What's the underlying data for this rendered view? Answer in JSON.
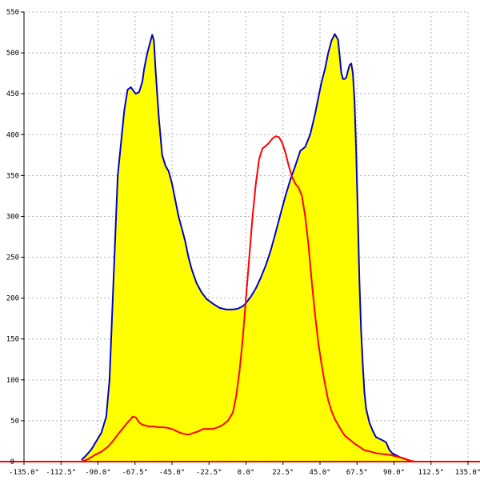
{
  "chart_data": {
    "type": "area",
    "title": "",
    "xlabel": "",
    "ylabel": "",
    "xlim": [
      -135,
      135
    ],
    "ylim": [
      0,
      550
    ],
    "x_tick_labels": [
      "-135.0°",
      "-112.5°",
      "-90.0°",
      "-67.5°",
      "-45.0°",
      "-22.5°",
      "0.0°",
      "22.5°",
      "45.0°",
      "67.5°",
      "90.0°",
      "112.5°",
      "135.0°"
    ],
    "y_tick_labels": [
      "50",
      "100",
      "150",
      "200",
      "250",
      "300",
      "350",
      "400",
      "450",
      "500",
      "550"
    ],
    "grid": true,
    "legend": "none",
    "colors": {
      "fill": "#ffff00",
      "blue_line": "#0000cc",
      "red_line": "#ff0000",
      "baseline": "#ff0000",
      "grid": "#b0b0b0"
    },
    "series": [
      {
        "color": "blue",
        "filled": true,
        "x": [
          -100,
          -97,
          -94,
          -91,
          -88,
          -85,
          -83,
          -81,
          -79,
          -78,
          -76,
          -74,
          -72,
          -70,
          -69,
          -67,
          -65,
          -63,
          -62,
          -60,
          -58,
          -57,
          -56,
          -55,
          -53,
          -51,
          -49,
          -47,
          -45,
          -43,
          -41,
          -39,
          -37,
          -35,
          -33,
          -30,
          -27,
          -24,
          -20,
          -16,
          -12,
          -8,
          -5,
          -2,
          0,
          3,
          6,
          9,
          12,
          15,
          18,
          21,
          24,
          27,
          30,
          33,
          36,
          39,
          42,
          44,
          46,
          48,
          50,
          52,
          54,
          56,
          57,
          58,
          59,
          60,
          61,
          62,
          63,
          64,
          65,
          66,
          67,
          68,
          69,
          70,
          71,
          72,
          73,
          75,
          77,
          79,
          81,
          83,
          85,
          86,
          87,
          89,
          91,
          94,
          97,
          100,
          102,
          103
        ],
        "y": [
          2,
          8,
          15,
          25,
          35,
          55,
          100,
          200,
          300,
          350,
          390,
          430,
          455,
          458,
          455,
          450,
          452,
          465,
          480,
          500,
          515,
          522,
          515,
          480,
          420,
          375,
          362,
          355,
          340,
          320,
          300,
          285,
          270,
          250,
          235,
          218,
          207,
          199,
          193,
          188,
          186,
          186,
          187,
          190,
          194,
          202,
          212,
          225,
          240,
          258,
          280,
          303,
          325,
          345,
          362,
          380,
          385,
          400,
          425,
          445,
          465,
          480,
          500,
          515,
          523,
          516,
          495,
          475,
          468,
          468,
          470,
          478,
          485,
          487,
          475,
          440,
          380,
          300,
          220,
          160,
          120,
          85,
          65,
          48,
          38,
          30,
          28,
          26,
          24,
          20,
          15,
          10,
          8,
          5,
          3,
          1,
          0,
          0
        ]
      },
      {
        "color": "red",
        "filled": false,
        "x": [
          -100,
          -96,
          -92,
          -88,
          -84,
          -81,
          -78,
          -76,
          -74,
          -72,
          -70,
          -69,
          -67,
          -65,
          -63,
          -61,
          -59,
          -56,
          -53,
          -50,
          -47,
          -44,
          -41,
          -38,
          -35,
          -32,
          -29,
          -26,
          -23,
          -20,
          -17,
          -14,
          -11,
          -8,
          -6,
          -4,
          -2,
          0,
          2,
          4,
          6,
          8,
          10,
          12,
          14,
          16,
          18,
          20,
          22,
          24,
          26,
          28,
          30,
          32,
          34,
          36,
          38,
          40,
          42,
          44,
          46,
          48,
          50,
          52,
          54,
          56,
          58,
          60,
          63,
          66,
          69,
          72,
          76,
          80,
          84,
          88,
          92,
          96,
          100,
          103
        ],
        "y": [
          0,
          3,
          8,
          12,
          18,
          25,
          33,
          38,
          43,
          48,
          52,
          55,
          54,
          48,
          45,
          44,
          43,
          43,
          42,
          42,
          41,
          39,
          36,
          34,
          33,
          35,
          37,
          40,
          40,
          40,
          42,
          45,
          50,
          60,
          80,
          110,
          150,
          200,
          250,
          300,
          340,
          370,
          383,
          386,
          390,
          395,
          398,
          397,
          390,
          378,
          362,
          348,
          340,
          335,
          325,
          300,
          265,
          220,
          180,
          145,
          118,
          95,
          75,
          62,
          52,
          45,
          38,
          32,
          27,
          22,
          18,
          14,
          12,
          10,
          9,
          8,
          6,
          4,
          1,
          0
        ]
      }
    ]
  }
}
